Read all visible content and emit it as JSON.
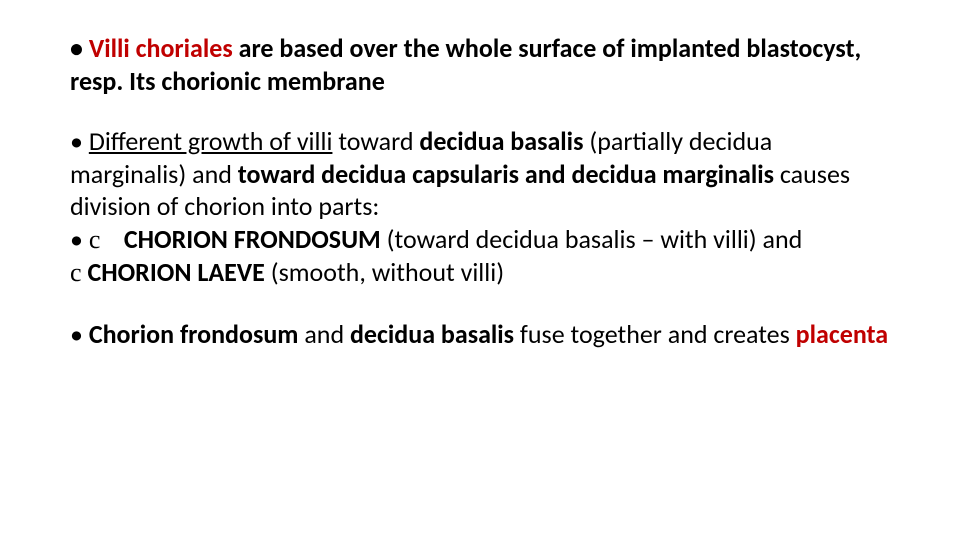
{
  "colors": {
    "text": "#000000",
    "accent_red": "#c00000",
    "background": "#ffffff"
  },
  "typography": {
    "font_family": "Calibri",
    "font_size_pt": 20,
    "line_height": 1.25
  },
  "p1": {
    "bullet": " • ",
    "s1": "Villi choriales",
    "s2": " are based over the whole surface of implanted blastocyst, resp. Its chorionic membrane"
  },
  "p2": {
    "bullet": " • ",
    "s1": "Different growth of villi",
    "s2": " toward ",
    "s3": "decidua basalis",
    "s4": " (partially decidua marginalis) and ",
    "s5": "toward decidua capsularis and decidua marginalis",
    "s6": " causes division of chorion into parts:",
    "inner_bullet": " • ",
    "sym1": "c",
    "sp1": "    ",
    "cf": "CHORION FRONDOSUM",
    "cf_tail": " (toward decidua basalis – with villi) and",
    "sym2": "c",
    "sp2": " ",
    "cl": "CHORION LAEVE",
    "cl_tail": " (smooth, without villi)"
  },
  "p3": {
    "bullet": " • ",
    "s1": "Chorion frondosum",
    "s2": " and ",
    "s3": "decidua basalis",
    "s4": " fuse together and creates ",
    "s5": "placenta"
  }
}
